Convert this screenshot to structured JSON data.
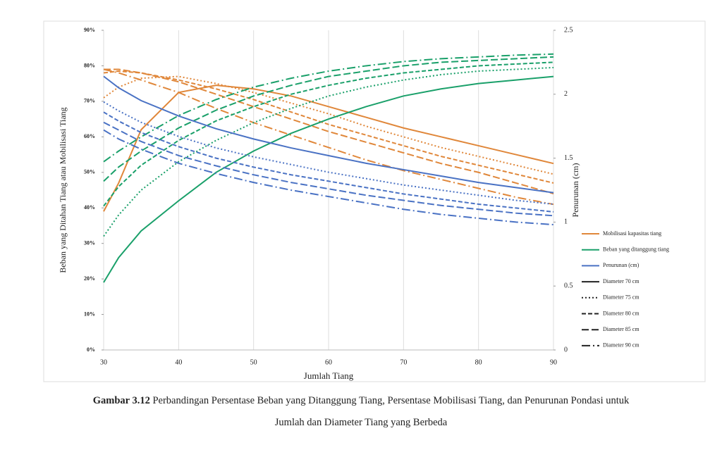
{
  "chart_data": {
    "type": "line",
    "xlabel": "Jumlah Tiang",
    "ylabel": "Beban yang Ditahan Tiang atau Mobilisasi Tiang",
    "y2label": "Penurunan (cm)",
    "x": [
      30,
      32,
      35,
      40,
      45,
      50,
      55,
      60,
      65,
      70,
      75,
      80,
      85,
      90
    ],
    "xlim": [
      30,
      90
    ],
    "xticks": [
      30,
      40,
      50,
      60,
      70,
      80,
      90
    ],
    "ylim": [
      0,
      90
    ],
    "yticks": [
      {
        "value": 0,
        "label": "0%"
      },
      {
        "value": 10,
        "label": "10%"
      },
      {
        "value": 20,
        "label": "20%"
      },
      {
        "value": 30,
        "label": "30%"
      },
      {
        "value": 40,
        "label": "40%"
      },
      {
        "value": 50,
        "label": "50%"
      },
      {
        "value": 60,
        "label": "60%"
      },
      {
        "value": 70,
        "label": "70%"
      },
      {
        "value": 80,
        "label": "80%"
      },
      {
        "value": 90,
        "label": "90%"
      }
    ],
    "y2lim": [
      0,
      2.5
    ],
    "y2ticks": [
      0,
      0.5,
      1,
      1.5,
      2,
      2.5
    ],
    "grid": "x",
    "dashes": [
      "solid",
      "dot",
      "dash",
      "longdash",
      "dashdot"
    ],
    "series": [
      {
        "name": "Mobilisasi kapasitas tiang",
        "color": "#e0873a",
        "axis": "y",
        "lines": [
          {
            "name": "Diameter 70 cm",
            "values": [
              39,
              47,
              62,
              72.5,
              74.5,
              73.5,
              71.5,
              68.5,
              65.5,
              62.5,
              60,
              57.5,
              55,
              52.5
            ]
          },
          {
            "name": "Diameter 75 cm",
            "values": [
              71,
              74,
              76.5,
              77,
              75,
              72.5,
              69.5,
              66.5,
              63,
              60,
              57,
              54.5,
              52,
              49.5
            ]
          },
          {
            "name": "Diameter 80 cm",
            "values": [
              78,
              78.5,
              78,
              76,
              73.5,
              70.5,
              67,
              63.5,
              60.5,
              57.5,
              54.5,
              52,
              49.5,
              47
            ]
          },
          {
            "name": "Diameter 85 cm",
            "values": [
              79,
              79,
              78,
              75.5,
              72,
              68.5,
              65,
              61.5,
              58.5,
              55.5,
              52.5,
              50,
              47,
              44
            ]
          },
          {
            "name": "Diameter 90 cm",
            "values": [
              79,
              78,
              76,
              72.5,
              68,
              64,
              60.5,
              57,
              53.5,
              50.5,
              48,
              45.5,
              43,
              41
            ]
          }
        ]
      },
      {
        "name": "Beban yang ditanggung tiang",
        "color": "#1aa06a",
        "axis": "y",
        "lines": [
          {
            "name": "Diameter 70 cm",
            "values": [
              19,
              26,
              33.5,
              42,
              50,
              56,
              61,
              65,
              68.5,
              71.5,
              73.5,
              75,
              76,
              77
            ]
          },
          {
            "name": "Diameter 75 cm",
            "values": [
              32,
              38,
              45,
              53,
              59,
              64,
              68,
              71.5,
              74,
              76,
              77.5,
              78.5,
              79,
              79.5
            ]
          },
          {
            "name": "Diameter 80 cm",
            "values": [
              40.5,
              46,
              52,
              59,
              64.5,
              68.5,
              72,
              74.5,
              76.5,
              78,
              79,
              80,
              80.5,
              81
            ]
          },
          {
            "name": "Diameter 85 cm",
            "values": [
              47.5,
              51.5,
              56,
              62.5,
              67.5,
              71.5,
              74.5,
              77,
              78.5,
              80,
              81,
              81.5,
              82,
              82.5
            ]
          },
          {
            "name": "Diameter 90 cm",
            "values": [
              53,
              56,
              60,
              66,
              70.5,
              74,
              76.5,
              78.5,
              80,
              81.2,
              82,
              82.5,
              83,
              83.3
            ]
          }
        ]
      },
      {
        "name": "Penurunan (cm)",
        "color": "#4a72c4",
        "axis": "y2",
        "lines": [
          {
            "name": "Diameter 70 cm",
            "values": [
              2.14,
              2.05,
              1.95,
              1.83,
              1.73,
              1.65,
              1.58,
              1.52,
              1.46,
              1.41,
              1.36,
              1.31,
              1.27,
              1.23
            ]
          },
          {
            "name": "Diameter 75 cm",
            "values": [
              1.94,
              1.87,
              1.78,
              1.67,
              1.58,
              1.51,
              1.45,
              1.39,
              1.34,
              1.29,
              1.25,
              1.21,
              1.17,
              1.14
            ]
          },
          {
            "name": "Diameter 80 cm",
            "values": [
              1.86,
              1.79,
              1.7,
              1.59,
              1.5,
              1.43,
              1.37,
              1.32,
              1.27,
              1.22,
              1.18,
              1.14,
              1.11,
              1.08
            ]
          },
          {
            "name": "Diameter 85 cm",
            "values": [
              1.78,
              1.72,
              1.63,
              1.52,
              1.44,
              1.37,
              1.31,
              1.26,
              1.21,
              1.17,
              1.13,
              1.1,
              1.07,
              1.05
            ]
          },
          {
            "name": "Diameter 90 cm",
            "values": [
              1.72,
              1.65,
              1.57,
              1.46,
              1.38,
              1.31,
              1.25,
              1.2,
              1.15,
              1.1,
              1.06,
              1.03,
              1.0,
              0.98
            ]
          }
        ]
      }
    ]
  },
  "caption": {
    "figure": "Gambar 3.12",
    "line1": "Perbandingan Persentase Beban yang Ditanggung Tiang, Persentase Mobilisasi Tiang, dan Penurunan Pondasi untuk",
    "line2": "Jumlah dan Diameter Tiang yang Berbeda"
  }
}
